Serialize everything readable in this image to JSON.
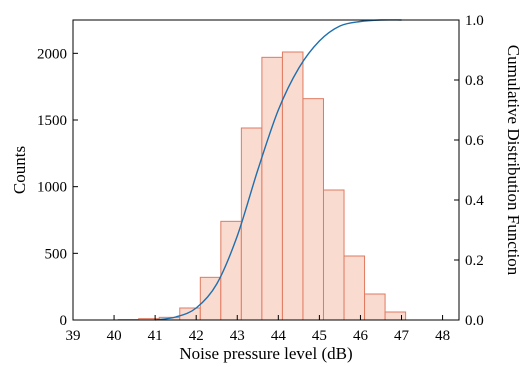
{
  "chart_data": {
    "type": "bar",
    "title": "",
    "xlabel": "Noise pressure level (dB)",
    "ylabel": "Counts",
    "y2label": "Cumulative Distribution Function",
    "xlim": [
      39,
      48.4
    ],
    "ylim": [
      0,
      2250
    ],
    "y2lim": [
      0,
      1.0
    ],
    "xticks": [
      39,
      40,
      41,
      42,
      43,
      44,
      45,
      46,
      47,
      48
    ],
    "yticks": [
      0,
      500,
      1000,
      1500,
      2000
    ],
    "y2ticks": [
      "0.0",
      "0.2",
      "0.4",
      "0.6",
      "0.8",
      "1.0"
    ],
    "bin_edges": [
      39.6,
      40.1,
      40.6,
      41.1,
      41.6,
      42.1,
      42.6,
      43.1,
      43.6,
      44.1,
      44.6,
      45.1,
      45.6,
      46.1,
      46.6,
      47.1
    ],
    "counts": [
      0,
      3,
      10,
      20,
      90,
      320,
      740,
      1440,
      1970,
      2010,
      1660,
      975,
      480,
      195,
      60,
      20
    ],
    "cdf": {
      "x": [
        41.0,
        41.5,
        42.0,
        42.5,
        43.0,
        43.5,
        44.0,
        44.5,
        45.0,
        45.5,
        46.0,
        46.5,
        47.0
      ],
      "y": [
        0.0,
        0.01,
        0.04,
        0.12,
        0.28,
        0.5,
        0.7,
        0.84,
        0.93,
        0.98,
        0.995,
        1.0,
        1.0
      ]
    },
    "grid": false,
    "legend": "none",
    "colors": {
      "bar_fill": "#fadbd0",
      "bar_edge": "#e07a5f",
      "cdf_line": "#1f6fae",
      "axis": "#000000"
    }
  }
}
